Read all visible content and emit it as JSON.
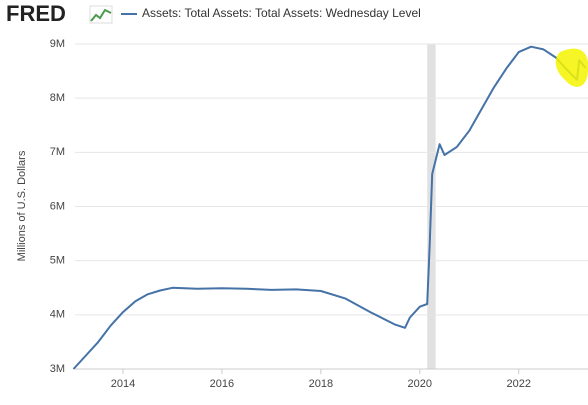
{
  "logo": "FRED",
  "chart_data": {
    "type": "line",
    "y_label": "Millions of U.S. Dollars",
    "x": [
      2013.0,
      2013.25,
      2013.5,
      2013.75,
      2014.0,
      2014.25,
      2014.5,
      2014.75,
      2015.0,
      2015.5,
      2016.0,
      2016.5,
      2017.0,
      2017.5,
      2018.0,
      2018.5,
      2019.0,
      2019.5,
      2019.7,
      2019.8,
      2020.0,
      2020.15,
      2020.2,
      2020.25,
      2020.4,
      2020.5,
      2020.75,
      2021.0,
      2021.25,
      2021.5,
      2021.75,
      2022.0,
      2022.25,
      2022.5,
      2022.75,
      2023.0,
      2023.18,
      2023.22,
      2023.35
    ],
    "series": [
      {
        "name": "Assets: Total Assets: Total Assets: Wednesday Level",
        "color": "#4572a7",
        "values": [
          3000000,
          3250000,
          3500000,
          3800000,
          4050000,
          4250000,
          4380000,
          4450000,
          4500000,
          4480000,
          4490000,
          4480000,
          4460000,
          4470000,
          4440000,
          4300000,
          4050000,
          3820000,
          3760000,
          3950000,
          4150000,
          4200000,
          5300000,
          6600000,
          7150000,
          6950000,
          7100000,
          7400000,
          7800000,
          8200000,
          8550000,
          8850000,
          8950000,
          8900000,
          8750000,
          8500000,
          8340000,
          8700000,
          8560000
        ]
      }
    ],
    "shading": [
      {
        "start": 2020.15,
        "end": 2020.32
      }
    ],
    "xlim": [
      2013.03,
      2023.4
    ],
    "xticks": [
      2014,
      2016,
      2018,
      2020,
      2022
    ],
    "ylim": [
      3000000,
      9000000
    ],
    "yticks": [
      {
        "value": 3000000,
        "label": "3M"
      },
      {
        "value": 4000000,
        "label": "4M"
      },
      {
        "value": 5000000,
        "label": "5M"
      },
      {
        "value": 6000000,
        "label": "6M"
      },
      {
        "value": 7000000,
        "label": "7M"
      },
      {
        "value": 8000000,
        "label": "8M"
      },
      {
        "value": 9000000,
        "label": "9M"
      }
    ],
    "grid": true
  }
}
